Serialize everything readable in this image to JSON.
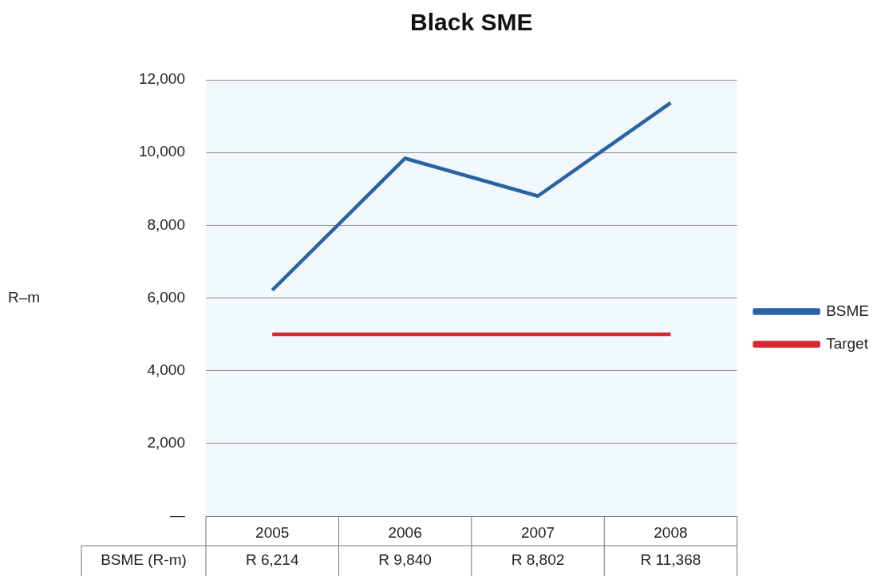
{
  "chart_data": {
    "type": "line",
    "title": "Black SME",
    "categories": [
      "2005",
      "2006",
      "2007",
      "2008"
    ],
    "series": [
      {
        "name": "BSME",
        "color": "#2a62a3",
        "values": [
          6214,
          9840,
          8802,
          11368
        ],
        "value_labels": [
          "R 6,214",
          "R 9,840",
          "R 8,802",
          "R 11,368"
        ]
      },
      {
        "name": "Target",
        "color": "#d7282f",
        "values": [
          5000,
          5000,
          5000,
          5000
        ]
      }
    ],
    "ylim": [
      0,
      12000
    ],
    "yticks": [
      {
        "value": 0,
        "label": "—"
      },
      {
        "value": 2000,
        "label": "2,000"
      },
      {
        "value": 4000,
        "label": "4,000"
      },
      {
        "value": 6000,
        "label": "6,000"
      },
      {
        "value": 8000,
        "label": "8,000"
      },
      {
        "value": 10000,
        "label": "10,000"
      },
      {
        "value": 12000,
        "label": "12,000"
      }
    ],
    "grid": "y",
    "legend": "right",
    "marker": "none",
    "line_style": "solid",
    "annotations": [
      "R–m",
      "BSME (R-m)"
    ]
  }
}
